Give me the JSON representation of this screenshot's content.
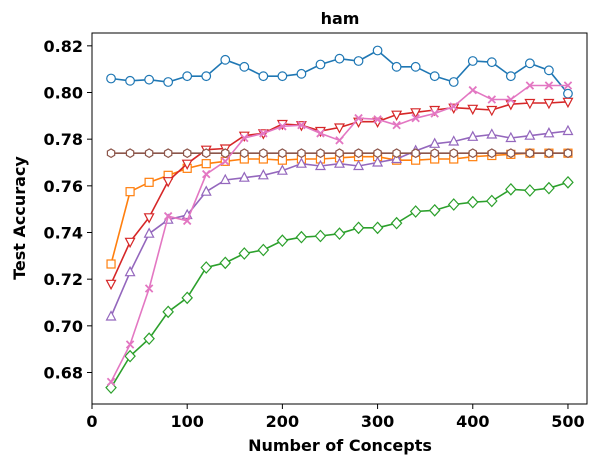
{
  "chart_data": {
    "type": "line",
    "title": "ham",
    "xlabel": "Number of Concepts",
    "ylabel": "Test Accuracy",
    "xlim": [
      0,
      520
    ],
    "ylim": [
      0.6665,
      0.8255
    ],
    "xticks": [
      0,
      100,
      200,
      300,
      400,
      500
    ],
    "xtick_labels": [
      "0",
      "100",
      "200",
      "300",
      "400",
      "500"
    ],
    "yticks": [
      0.68,
      0.7,
      0.72,
      0.74,
      0.76,
      0.78,
      0.8,
      0.82
    ],
    "ytick_labels": [
      "0.68",
      "0.70",
      "0.72",
      "0.74",
      "0.76",
      "0.78",
      "0.80",
      "0.82"
    ],
    "grid": false,
    "x": [
      20,
      40,
      60,
      80,
      100,
      120,
      140,
      160,
      180,
      200,
      220,
      240,
      260,
      280,
      300,
      320,
      340,
      360,
      380,
      400,
      420,
      440,
      460,
      480,
      500
    ],
    "series": [
      {
        "color": "#1f77b4",
        "marker": "circle",
        "values": [
          0.806,
          0.805,
          0.8055,
          0.8045,
          0.807,
          0.807,
          0.814,
          0.811,
          0.807,
          0.807,
          0.808,
          0.812,
          0.8145,
          0.8135,
          0.818,
          0.811,
          0.811,
          0.807,
          0.8045,
          0.8135,
          0.813,
          0.807,
          0.8125,
          0.8095,
          0.7995
        ]
      },
      {
        "color": "#ff7f0e",
        "marker": "square",
        "values": [
          0.7265,
          0.7575,
          0.7615,
          0.7645,
          0.7675,
          0.7695,
          0.7705,
          0.7715,
          0.7715,
          0.771,
          0.7715,
          0.7715,
          0.772,
          0.7725,
          0.7725,
          0.771,
          0.771,
          0.7715,
          0.7715,
          0.7725,
          0.773,
          0.7735,
          0.774,
          0.774,
          0.774
        ]
      },
      {
        "color": "#2ca02c",
        "marker": "diamond",
        "values": [
          0.6735,
          0.687,
          0.6945,
          0.706,
          0.712,
          0.725,
          0.727,
          0.731,
          0.7325,
          0.7365,
          0.738,
          0.7385,
          0.7395,
          0.742,
          0.742,
          0.744,
          0.749,
          0.7495,
          0.752,
          0.753,
          0.7535,
          0.7585,
          0.758,
          0.759,
          0.7615
        ]
      },
      {
        "color": "#d62728",
        "marker": "triangle-down",
        "values": [
          0.718,
          0.736,
          0.7465,
          0.762,
          0.7695,
          0.7755,
          0.776,
          0.7815,
          0.7825,
          0.7865,
          0.786,
          0.7835,
          0.785,
          0.7875,
          0.7875,
          0.7905,
          0.7915,
          0.7925,
          0.7935,
          0.793,
          0.7925,
          0.795,
          0.7955,
          0.7955,
          0.796
        ]
      },
      {
        "color": "#9467bd",
        "marker": "triangle-up",
        "values": [
          0.704,
          0.723,
          0.7395,
          0.7455,
          0.7475,
          0.7575,
          0.7625,
          0.7635,
          0.7645,
          0.7665,
          0.7695,
          0.7685,
          0.7695,
          0.7685,
          0.77,
          0.7715,
          0.775,
          0.778,
          0.779,
          0.781,
          0.782,
          0.7805,
          0.7815,
          0.7825,
          0.7835
        ]
      },
      {
        "color": "#8c564b",
        "marker": "hexagon",
        "values": [
          0.774,
          0.774,
          0.774,
          0.774,
          0.774,
          0.774,
          0.774,
          0.774,
          0.774,
          0.774,
          0.774,
          0.774,
          0.774,
          0.774,
          0.774,
          0.774,
          0.774,
          0.774,
          0.774,
          0.774,
          0.774,
          0.774,
          0.774,
          0.774,
          0.774
        ]
      },
      {
        "color": "#e377c2",
        "marker": "x",
        "values": [
          0.676,
          0.692,
          0.716,
          0.747,
          0.745,
          0.765,
          0.7705,
          0.7805,
          0.7825,
          0.7855,
          0.786,
          0.7825,
          0.7795,
          0.789,
          0.7885,
          0.786,
          0.789,
          0.791,
          0.794,
          0.801,
          0.797,
          0.797,
          0.803,
          0.803,
          0.803
        ]
      }
    ]
  }
}
